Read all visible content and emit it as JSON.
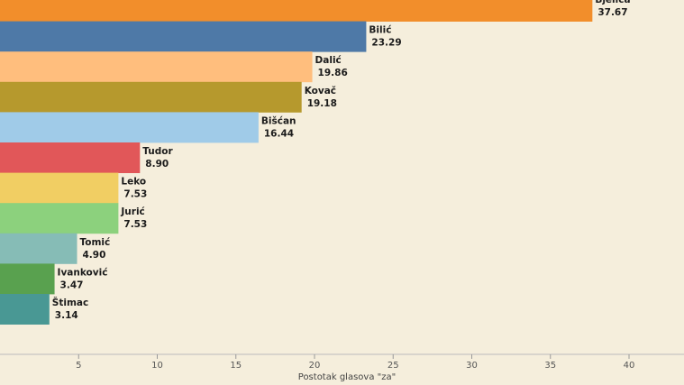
{
  "chart_data": {
    "type": "bar",
    "orientation": "horizontal",
    "title": "",
    "xlabel": "Postotak glasova \"za\"",
    "ylabel": "",
    "xlim": [
      0,
      42
    ],
    "grid": false,
    "xticks": [
      5,
      10,
      15,
      20,
      25,
      30,
      35,
      40
    ],
    "categories": [
      "Bjelica",
      "Bilić",
      "Dalić",
      "Kovač",
      "Bišćan",
      "Tudor",
      "Leko",
      "Jurić",
      "Tomić",
      "Ivanković",
      "Štimac"
    ],
    "values": [
      37.67,
      23.29,
      19.86,
      19.18,
      16.44,
      8.9,
      7.53,
      7.53,
      4.9,
      3.47,
      3.14
    ],
    "value_labels": [
      "37.67",
      "23.29",
      "19.86",
      "19.18",
      "16.44",
      "8.90",
      "7.53",
      "7.53",
      "4.90",
      "3.47",
      "3.14"
    ],
    "colors": [
      "#f28e2b",
      "#4e79a7",
      "#ffbe7d",
      "#b6992d",
      "#a0cbe8",
      "#e15759",
      "#f1ce63",
      "#8cd17d",
      "#86bcb6",
      "#59a14f",
      "#499894"
    ]
  }
}
